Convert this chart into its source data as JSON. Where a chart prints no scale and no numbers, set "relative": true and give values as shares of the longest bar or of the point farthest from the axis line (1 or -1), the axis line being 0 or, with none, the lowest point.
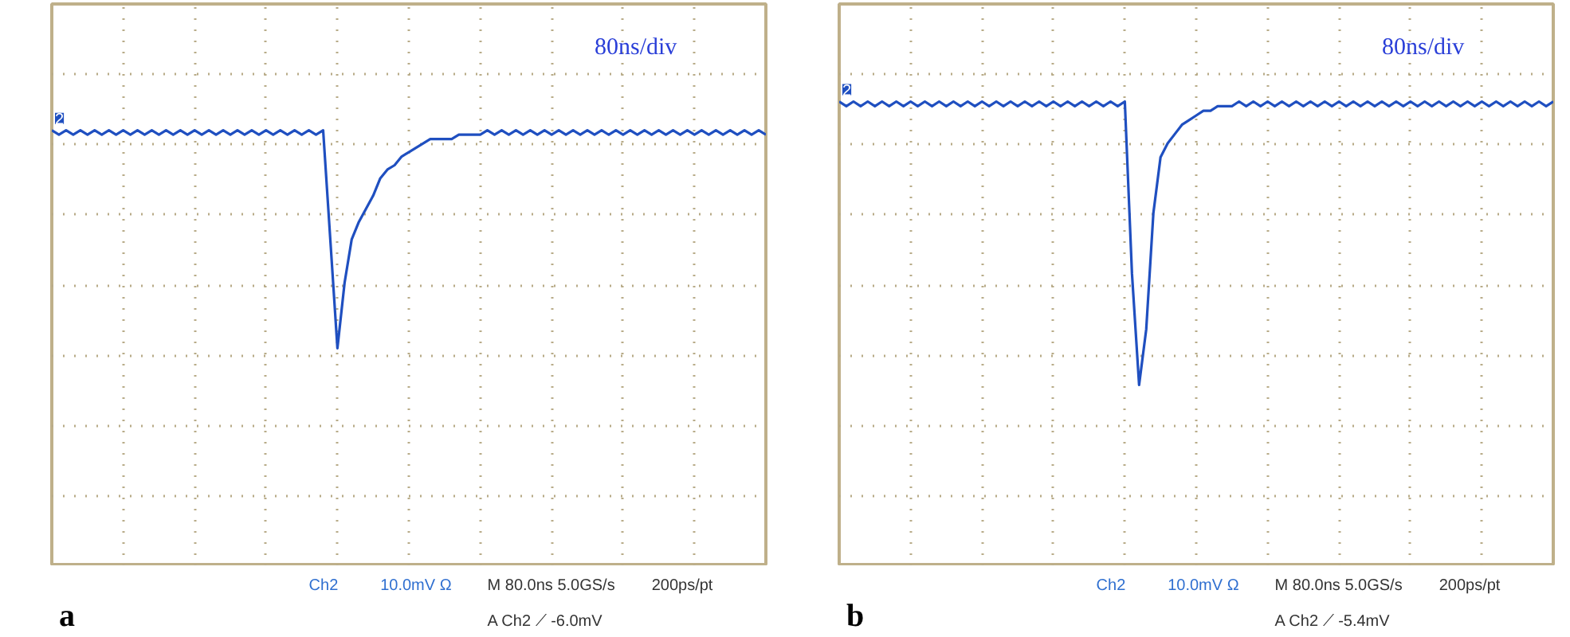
{
  "chart_data": [
    {
      "type": "line",
      "title": "a",
      "subtitle": "80ns/div",
      "relative": true,
      "tick_labels": false,
      "grid": true,
      "line_style": "solid",
      "categories": [
        null,
        null,
        null,
        null,
        null,
        null,
        null,
        null,
        null,
        null,
        null,
        null,
        null,
        null,
        null,
        null,
        null,
        null,
        null,
        null,
        null,
        null,
        null,
        null,
        null,
        null,
        null,
        null,
        null,
        null,
        null,
        null,
        null,
        null,
        null,
        null,
        null,
        null,
        null,
        null,
        null,
        null,
        null,
        null,
        null,
        null,
        null,
        null,
        null,
        null,
        null,
        null,
        null,
        null,
        null,
        null,
        null,
        null,
        null,
        null,
        null,
        null,
        null,
        null,
        null,
        null,
        null,
        null,
        null,
        null,
        null,
        null,
        null,
        null,
        null,
        null,
        null,
        null,
        null,
        null,
        null,
        null,
        null,
        null,
        null,
        null,
        null,
        null,
        null,
        null,
        null,
        null,
        null,
        null,
        null,
        null,
        null,
        null,
        null,
        null,
        null
      ],
      "series": [
        {
          "color": "#1f4fc0",
          "values": [
            1,
            0.99,
            1,
            0.99,
            1,
            0.99,
            1,
            0.99,
            1,
            0.99,
            1,
            0.99,
            1,
            0.99,
            1,
            0.99,
            1,
            0.99,
            1,
            0.99,
            1,
            0.99,
            1,
            0.99,
            1,
            0.99,
            1,
            0.99,
            1,
            0.99,
            1,
            0.99,
            1,
            0.99,
            1,
            0.99,
            1,
            0.99,
            1,
            0.75,
            0.5,
            0.65,
            0.75,
            0.79,
            0.82,
            0.85,
            0.89,
            0.91,
            0.92,
            0.94,
            0.95,
            0.96,
            0.97,
            0.98,
            0.98,
            0.98,
            0.98,
            0.99,
            0.99,
            0.99,
            0.99,
            1,
            0.99,
            1,
            0.99,
            1,
            0.99,
            1,
            0.99,
            1,
            0.99,
            1,
            0.99,
            1,
            0.99,
            1,
            0.99,
            1,
            0.99,
            1,
            0.99,
            1,
            0.99,
            1,
            0.99,
            1,
            0.99,
            1,
            0.99,
            1,
            0.99,
            1,
            0.99,
            1,
            0.99,
            1,
            0.99,
            1,
            0.99,
            1,
            0.99
          ]
        }
      ],
      "annotations": [
        "2",
        "Ch2",
        "10.0mV Ω",
        "M 80.0ns 5.0GS/s",
        "200ps/pt",
        "A Ch2 ⟋ -6.0mV"
      ]
    },
    {
      "type": "line",
      "title": "b",
      "subtitle": "80ns/div",
      "relative": true,
      "tick_labels": false,
      "grid": true,
      "line_style": "solid",
      "categories": [
        null,
        null,
        null,
        null,
        null,
        null,
        null,
        null,
        null,
        null,
        null,
        null,
        null,
        null,
        null,
        null,
        null,
        null,
        null,
        null,
        null,
        null,
        null,
        null,
        null,
        null,
        null,
        null,
        null,
        null,
        null,
        null,
        null,
        null,
        null,
        null,
        null,
        null,
        null,
        null,
        null,
        null,
        null,
        null,
        null,
        null,
        null,
        null,
        null,
        null,
        null,
        null,
        null,
        null,
        null,
        null,
        null,
        null,
        null,
        null,
        null,
        null,
        null,
        null,
        null,
        null,
        null,
        null,
        null,
        null,
        null,
        null,
        null,
        null,
        null,
        null,
        null,
        null,
        null,
        null,
        null,
        null,
        null,
        null,
        null,
        null,
        null,
        null,
        null,
        null,
        null,
        null,
        null,
        null,
        null,
        null,
        null,
        null,
        null,
        null,
        null
      ],
      "series": [
        {
          "color": "#1f4fc0",
          "values": [
            1,
            0.99,
            1,
            0.99,
            1,
            0.99,
            1,
            0.99,
            1,
            0.99,
            1,
            0.99,
            1,
            0.99,
            1,
            0.99,
            1,
            0.99,
            1,
            0.99,
            1,
            0.99,
            1,
            0.99,
            1,
            0.99,
            1,
            0.99,
            1,
            0.99,
            1,
            0.99,
            1,
            0.99,
            1,
            0.99,
            1,
            0.99,
            1,
            0.99,
            1,
            0.63,
            0.39,
            0.51,
            0.76,
            0.88,
            0.91,
            0.93,
            0.95,
            0.96,
            0.97,
            0.98,
            0.98,
            0.99,
            0.99,
            0.99,
            1,
            0.99,
            1,
            0.99,
            1,
            0.99,
            1,
            0.99,
            1,
            0.99,
            1,
            0.99,
            1,
            0.99,
            1,
            0.99,
            1,
            0.99,
            1,
            0.99,
            1,
            0.99,
            1,
            0.99,
            1,
            0.99,
            1,
            0.99,
            1,
            0.99,
            1,
            0.99,
            1,
            0.99,
            1,
            0.99,
            1,
            0.99,
            1,
            0.99,
            1,
            0.99,
            1,
            0.99,
            1
          ]
        }
      ],
      "annotations": [
        "2",
        "Ch2",
        "10.0mV Ω",
        "M 80.0ns 5.0GS/s",
        "200ps/pt",
        "A Ch2 ⟋ -5.4mV"
      ]
    }
  ]
}
